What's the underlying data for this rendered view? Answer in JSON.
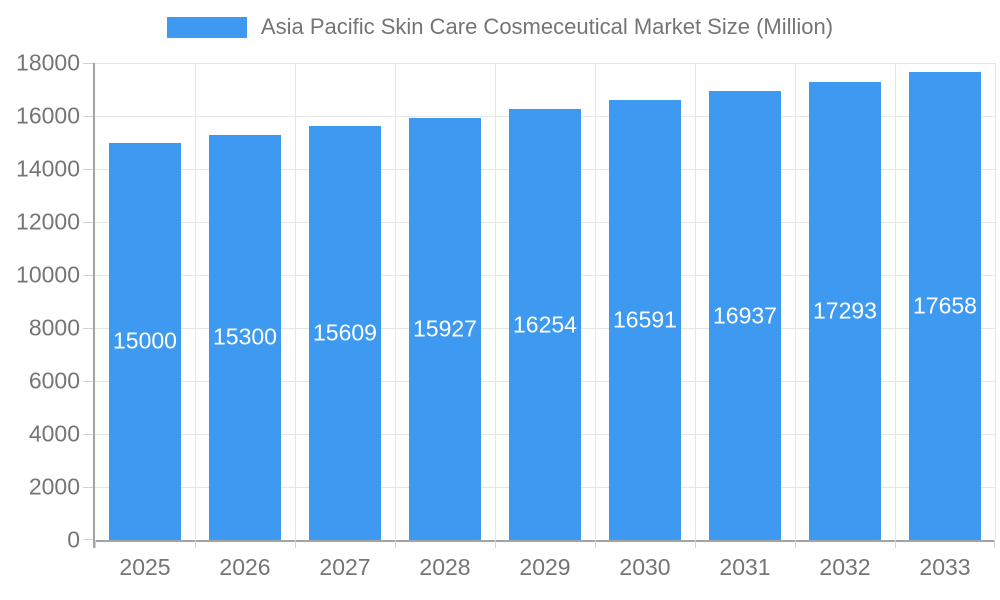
{
  "chart_data": {
    "type": "bar",
    "title": "Asia Pacific Skin Care Cosmeceutical Market Size (Million)",
    "categories": [
      "2025",
      "2026",
      "2027",
      "2028",
      "2029",
      "2030",
      "2031",
      "2032",
      "2033"
    ],
    "values": [
      15000,
      15300,
      15609,
      15927,
      16254,
      16591,
      16937,
      17293,
      17658
    ],
    "xlabel": "",
    "ylabel": "",
    "ylim": [
      0,
      18000
    ],
    "ytick_step": 2000,
    "grid": true,
    "legend_position": "top-center",
    "colors": {
      "bar": "#3e9af1",
      "bar_label_text": "#ffffff",
      "axis_text": "#757575",
      "title_text": "#757575",
      "gridline": "#e6e6e6",
      "axis_line": "#a3a3a3",
      "tick": "#d2d2d2",
      "background": "#ffffff"
    }
  }
}
